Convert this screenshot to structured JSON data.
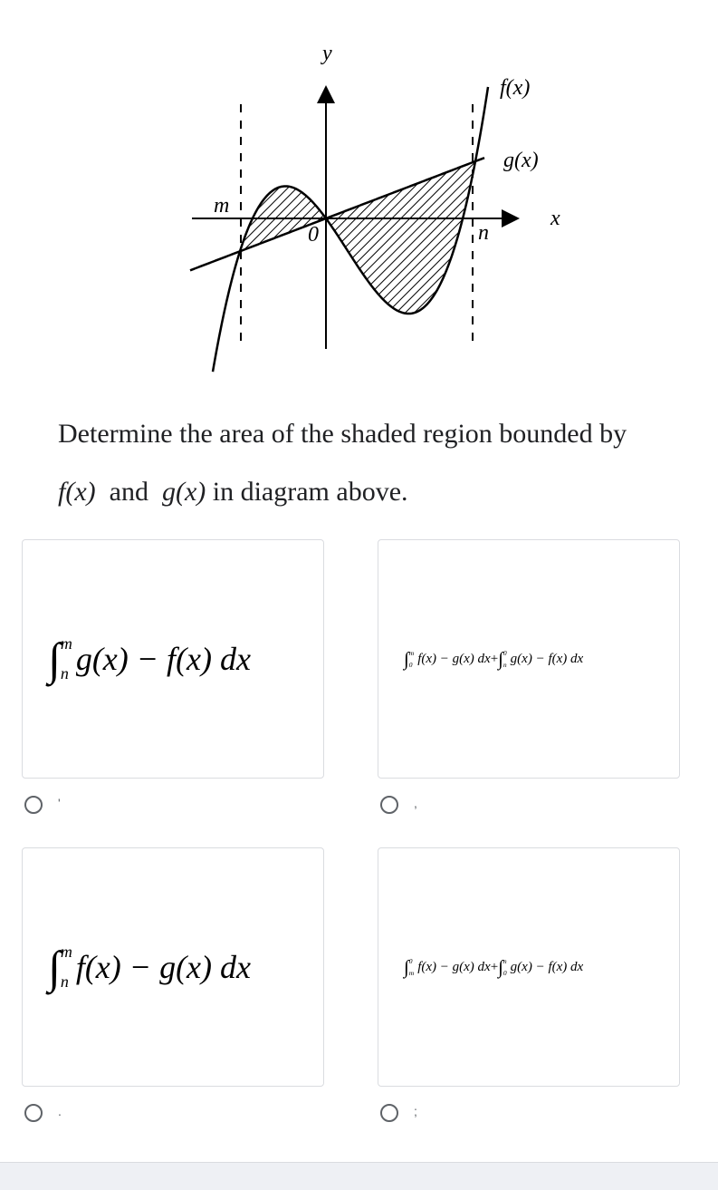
{
  "diagram": {
    "labels": {
      "y_axis": "y",
      "x_axis": "x",
      "f": "f(x)",
      "g": "g(x)",
      "m": "m",
      "origin": "0",
      "n": "n"
    }
  },
  "question": {
    "line1": "Determine the area of the shaded region bounded by",
    "line2": [
      "f(x)",
      "and",
      "g(x)",
      "in diagram above."
    ]
  },
  "options": [
    {
      "terms": [
        {
          "upper": "m",
          "lower": "n",
          "integrand": "g(x) − f(x) dx"
        }
      ],
      "joiners": [],
      "marker": "'"
    },
    {
      "terms": [
        {
          "upper": "m",
          "lower": "0",
          "integrand": "f(x) − g(x) dx"
        },
        {
          "upper": "0",
          "lower": "n",
          "integrand": "g(x) − f(x) dx"
        }
      ],
      "joiners": [
        "+"
      ],
      "marker": ","
    },
    {
      "terms": [
        {
          "upper": "m",
          "lower": "n",
          "integrand": "f(x) − g(x) dx"
        }
      ],
      "joiners": [],
      "marker": "."
    },
    {
      "terms": [
        {
          "upper": "0",
          "lower": "m",
          "integrand": "f(x) − g(x) dx"
        },
        {
          "upper": "n",
          "lower": "0",
          "integrand": "g(x) − f(x) dx"
        }
      ],
      "joiners": [
        "+"
      ],
      "marker": ";"
    }
  ]
}
